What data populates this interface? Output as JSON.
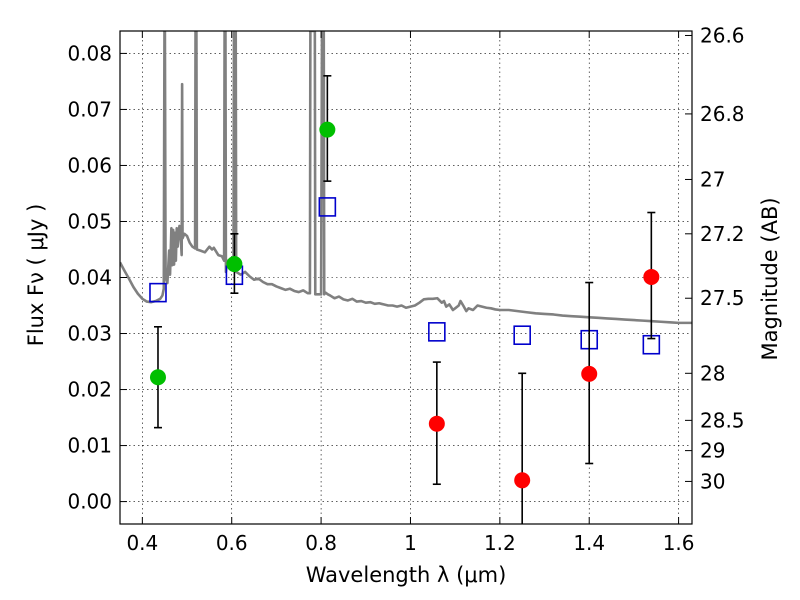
{
  "chart_data": {
    "type": "scatter",
    "title": "",
    "xlabel": "Wavelength  λ (μm)",
    "ylabel": "Flux  Fν  ( μJy )",
    "ylabel_right": "Magnitude (AB)",
    "xlim": [
      0.35,
      1.63
    ],
    "ylim": [
      -0.004,
      0.084
    ],
    "grid": true,
    "x_ticks": [
      0.4,
      0.6,
      0.8,
      1.0,
      1.2,
      1.4,
      1.6
    ],
    "x_tick_labels": [
      "0.4",
      "0.6",
      "0.8",
      "1",
      "1.2",
      "1.4",
      "1.6"
    ],
    "y_ticks": [
      0.0,
      0.01,
      0.02,
      0.03,
      0.04,
      0.05,
      0.06,
      0.07,
      0.08
    ],
    "y_tick_labels": [
      "0.00",
      "0.01",
      "0.02",
      "0.03",
      "0.04",
      "0.05",
      "0.06",
      "0.07",
      "0.08"
    ],
    "right_ticks": [
      {
        "flux": 0.0832,
        "label": "26.6"
      },
      {
        "flux": 0.0692,
        "label": "26.8"
      },
      {
        "flux": 0.0575,
        "label": "27"
      },
      {
        "flux": 0.0478,
        "label": "27.2"
      },
      {
        "flux": 0.0363,
        "label": "27.5"
      },
      {
        "flux": 0.0229,
        "label": "28"
      },
      {
        "flux": 0.0145,
        "label": "28.5"
      },
      {
        "flux": 0.0091,
        "label": "29"
      },
      {
        "flux": 0.0036,
        "label": "30"
      }
    ],
    "series": [
      {
        "marker": "circle",
        "color": "#00bf00",
        "points": [
          {
            "x": 0.435,
            "y": 0.0222,
            "err_low": 0.0132,
            "err_high": 0.0312
          },
          {
            "x": 0.606,
            "y": 0.0424,
            "err_low": 0.0372,
            "err_high": 0.0478
          },
          {
            "x": 0.814,
            "y": 0.0664,
            "err_low": 0.0572,
            "err_high": 0.076
          }
        ]
      },
      {
        "marker": "circle",
        "color": "#ff0000",
        "points": [
          {
            "x": 1.059,
            "y": 0.0139,
            "err_low": 0.0031,
            "err_high": 0.0249
          },
          {
            "x": 1.25,
            "y": 0.0038,
            "err_low": -0.0045,
            "err_high": 0.0229
          },
          {
            "x": 1.4,
            "y": 0.0228,
            "err_low": 0.0068,
            "err_high": 0.0391
          },
          {
            "x": 1.539,
            "y": 0.0401,
            "err_low": 0.0291,
            "err_high": 0.0516
          }
        ]
      },
      {
        "marker": "square",
        "color": "#0000cc",
        "points": [
          {
            "x": 0.435,
            "y": 0.0373
          },
          {
            "x": 0.606,
            "y": 0.0404
          },
          {
            "x": 0.814,
            "y": 0.0526
          },
          {
            "x": 1.059,
            "y": 0.0303
          },
          {
            "x": 1.25,
            "y": 0.0297
          },
          {
            "x": 1.4,
            "y": 0.0289
          },
          {
            "x": 1.539,
            "y": 0.028
          }
        ]
      },
      {
        "marker": "line",
        "color": "#808080",
        "points": [
          [
            0.35,
            0.0427
          ],
          [
            0.36,
            0.0412
          ],
          [
            0.37,
            0.0398
          ],
          [
            0.38,
            0.0383
          ],
          [
            0.39,
            0.0371
          ],
          [
            0.4,
            0.0362
          ],
          [
            0.41,
            0.0357
          ],
          [
            0.42,
            0.0356
          ],
          [
            0.43,
            0.0358
          ],
          [
            0.44,
            0.0362
          ],
          [
            0.445,
            0.0368
          ],
          [
            0.448,
            0.038
          ],
          [
            0.449,
            0.07
          ],
          [
            0.4495,
            0.084
          ],
          [
            0.4505,
            0.084
          ],
          [
            0.451,
            0.07
          ],
          [
            0.452,
            0.04
          ],
          [
            0.456,
            0.039
          ],
          [
            0.46,
            0.0448
          ],
          [
            0.462,
            0.0405
          ],
          [
            0.465,
            0.0488
          ],
          [
            0.467,
            0.0422
          ],
          [
            0.469,
            0.0485
          ],
          [
            0.471,
            0.0423
          ],
          [
            0.473,
            0.048
          ],
          [
            0.475,
            0.043
          ],
          [
            0.477,
            0.0488
          ],
          [
            0.479,
            0.0455
          ],
          [
            0.483,
            0.0492
          ],
          [
            0.486,
            0.047
          ],
          [
            0.488,
            0.044
          ],
          [
            0.489,
            0.0745
          ],
          [
            0.49,
            0.047
          ],
          [
            0.494,
            0.0478
          ],
          [
            0.5,
            0.0474
          ],
          [
            0.506,
            0.0462
          ],
          [
            0.512,
            0.0455
          ],
          [
            0.518,
            0.0452
          ],
          [
            0.519,
            0.084
          ],
          [
            0.521,
            0.084
          ],
          [
            0.522,
            0.045
          ],
          [
            0.53,
            0.0448
          ],
          [
            0.54,
            0.0445
          ],
          [
            0.55,
            0.0455
          ],
          [
            0.556,
            0.045
          ],
          [
            0.56,
            0.0453
          ],
          [
            0.57,
            0.044
          ],
          [
            0.578,
            0.0438
          ],
          [
            0.583,
            0.043
          ],
          [
            0.584,
            0.084
          ],
          [
            0.586,
            0.084
          ],
          [
            0.587,
            0.041
          ],
          [
            0.59,
            0.043
          ],
          [
            0.6,
            0.042
          ],
          [
            0.604,
            0.0415
          ],
          [
            0.605,
            0.084
          ],
          [
            0.609,
            0.084
          ],
          [
            0.61,
            0.041
          ],
          [
            0.62,
            0.0405
          ],
          [
            0.63,
            0.041
          ],
          [
            0.64,
            0.0402
          ],
          [
            0.65,
            0.0396
          ],
          [
            0.66,
            0.0398
          ],
          [
            0.67,
            0.0392
          ],
          [
            0.68,
            0.0388
          ],
          [
            0.69,
            0.0388
          ],
          [
            0.7,
            0.0384
          ],
          [
            0.71,
            0.0381
          ],
          [
            0.72,
            0.0378
          ],
          [
            0.73,
            0.038
          ],
          [
            0.74,
            0.0376
          ],
          [
            0.75,
            0.0374
          ],
          [
            0.76,
            0.0377
          ],
          [
            0.77,
            0.0372
          ],
          [
            0.775,
            0.0372
          ],
          [
            0.776,
            0.084
          ],
          [
            0.786,
            0.084
          ],
          [
            0.787,
            0.037
          ],
          [
            0.8,
            0.037
          ],
          [
            0.802,
            0.084
          ],
          [
            0.806,
            0.084
          ],
          [
            0.807,
            0.037
          ],
          [
            0.81,
            0.0373
          ],
          [
            0.815,
            0.037
          ],
          [
            0.82,
            0.0368
          ],
          [
            0.83,
            0.0363
          ],
          [
            0.84,
            0.0366
          ],
          [
            0.85,
            0.0361
          ],
          [
            0.86,
            0.0359
          ],
          [
            0.87,
            0.0362
          ],
          [
            0.88,
            0.0357
          ],
          [
            0.89,
            0.0358
          ],
          [
            0.9,
            0.0355
          ],
          [
            0.91,
            0.0356
          ],
          [
            0.92,
            0.0353
          ],
          [
            0.93,
            0.0354
          ],
          [
            0.94,
            0.0352
          ],
          [
            0.95,
            0.035
          ],
          [
            0.96,
            0.035
          ],
          [
            0.97,
            0.0348
          ],
          [
            0.98,
            0.035
          ],
          [
            0.99,
            0.0346
          ],
          [
            1.0,
            0.0348
          ],
          [
            1.01,
            0.035
          ],
          [
            1.02,
            0.0355
          ],
          [
            1.03,
            0.0361
          ],
          [
            1.04,
            0.0362
          ],
          [
            1.05,
            0.0362
          ],
          [
            1.06,
            0.0363
          ],
          [
            1.07,
            0.0355
          ],
          [
            1.075,
            0.0358
          ],
          [
            1.08,
            0.0348
          ],
          [
            1.087,
            0.0352
          ],
          [
            1.095,
            0.0342
          ],
          [
            1.1,
            0.0345
          ],
          [
            1.108,
            0.035
          ],
          [
            1.112,
            0.0358
          ],
          [
            1.118,
            0.035
          ],
          [
            1.125,
            0.034
          ],
          [
            1.13,
            0.0345
          ],
          [
            1.14,
            0.0342
          ],
          [
            1.15,
            0.035
          ],
          [
            1.16,
            0.0348
          ],
          [
            1.17,
            0.0346
          ],
          [
            1.18,
            0.0345
          ],
          [
            1.19,
            0.0343
          ],
          [
            1.2,
            0.0342
          ],
          [
            1.22,
            0.0342
          ],
          [
            1.24,
            0.034
          ],
          [
            1.26,
            0.0338
          ],
          [
            1.28,
            0.0336
          ],
          [
            1.3,
            0.0335
          ],
          [
            1.32,
            0.0334
          ],
          [
            1.34,
            0.0332
          ],
          [
            1.36,
            0.0331
          ],
          [
            1.38,
            0.033
          ],
          [
            1.4,
            0.0329
          ],
          [
            1.42,
            0.0328
          ],
          [
            1.44,
            0.0327
          ],
          [
            1.46,
            0.0326
          ],
          [
            1.48,
            0.0325
          ],
          [
            1.5,
            0.0324
          ],
          [
            1.52,
            0.0323
          ],
          [
            1.54,
            0.0322
          ],
          [
            1.56,
            0.0321
          ],
          [
            1.58,
            0.032
          ],
          [
            1.6,
            0.0319
          ],
          [
            1.63,
            0.0319
          ]
        ]
      }
    ]
  }
}
